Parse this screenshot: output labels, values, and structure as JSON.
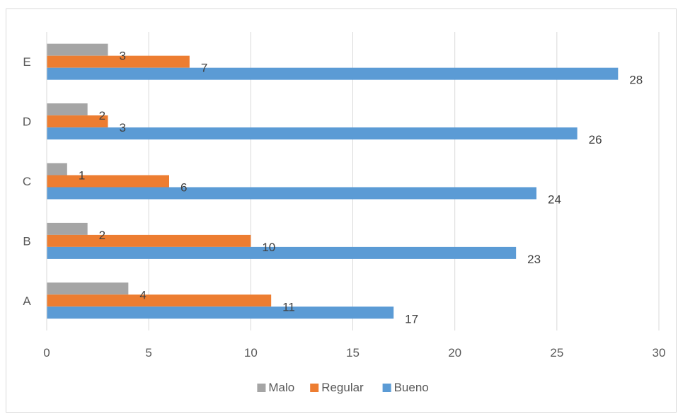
{
  "chart_data": {
    "type": "bar",
    "orientation": "horizontal",
    "categories": [
      "A",
      "B",
      "C",
      "D",
      "E"
    ],
    "series": [
      {
        "name": "Malo",
        "values": [
          4,
          2,
          1,
          2,
          3
        ],
        "color": "#a5a5a5"
      },
      {
        "name": "Regular",
        "values": [
          11,
          10,
          6,
          3,
          7
        ],
        "color": "#ed7d31"
      },
      {
        "name": "Bueno",
        "values": [
          17,
          23,
          24,
          26,
          28
        ],
        "color": "#5b9bd5"
      }
    ],
    "xlim": [
      0,
      30
    ],
    "x_ticks": [
      0,
      5,
      10,
      15,
      20,
      25,
      30
    ],
    "grid": true,
    "legend_position": "bottom",
    "data_labels": true
  }
}
